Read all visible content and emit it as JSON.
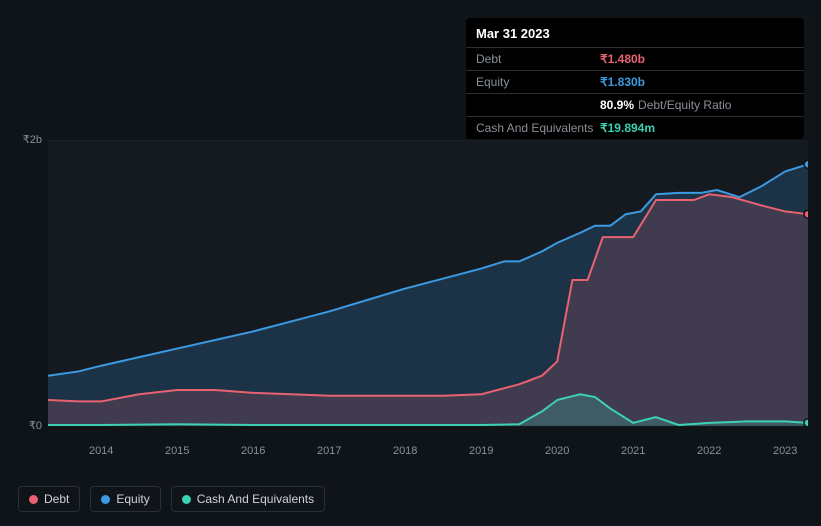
{
  "tooltip": {
    "date": "Mar 31 2023",
    "rows": [
      {
        "label": "Debt",
        "value": "₹1.480b",
        "color": "#e96272"
      },
      {
        "label": "Equity",
        "value": "₹1.830b",
        "color": "#3b9ae1"
      },
      {
        "label": "",
        "value": "80.9%",
        "extra": "Debt/Equity Ratio",
        "color": "#ffffff"
      },
      {
        "label": "Cash And Equivalents",
        "value": "₹19.894m",
        "color": "#3dd0b3"
      }
    ]
  },
  "chart": {
    "type": "area",
    "background_color": "#0f1419",
    "plot_background": "#151a21",
    "grid_color": "#1e242c",
    "ylim": [
      -0.1,
      2.0
    ],
    "yticks": [
      {
        "label": "₹2b",
        "value": 2.0
      },
      {
        "label": "₹0",
        "value": 0.0
      }
    ],
    "xlim": [
      2013.3,
      2023.3
    ],
    "xticks": [
      2014,
      2015,
      2016,
      2017,
      2018,
      2019,
      2020,
      2021,
      2022,
      2023
    ],
    "series": {
      "debt": {
        "color": "#e96272",
        "fill": "rgba(233,98,114,0.18)",
        "data": [
          [
            2013.3,
            0.18
          ],
          [
            2013.7,
            0.17
          ],
          [
            2014.0,
            0.17
          ],
          [
            2014.5,
            0.22
          ],
          [
            2015.0,
            0.25
          ],
          [
            2015.5,
            0.25
          ],
          [
            2016.0,
            0.23
          ],
          [
            2016.5,
            0.22
          ],
          [
            2017.0,
            0.21
          ],
          [
            2017.5,
            0.21
          ],
          [
            2018.0,
            0.21
          ],
          [
            2018.5,
            0.21
          ],
          [
            2019.0,
            0.22
          ],
          [
            2019.5,
            0.29
          ],
          [
            2019.8,
            0.35
          ],
          [
            2020.0,
            0.45
          ],
          [
            2020.2,
            1.02
          ],
          [
            2020.4,
            1.02
          ],
          [
            2020.6,
            1.32
          ],
          [
            2020.8,
            1.32
          ],
          [
            2021.0,
            1.32
          ],
          [
            2021.3,
            1.58
          ],
          [
            2021.8,
            1.58
          ],
          [
            2022.0,
            1.62
          ],
          [
            2022.3,
            1.6
          ],
          [
            2022.7,
            1.54
          ],
          [
            2023.0,
            1.5
          ],
          [
            2023.3,
            1.48
          ]
        ],
        "end_marker": true
      },
      "equity": {
        "color": "#3b9ae1",
        "fill": "rgba(59,154,225,0.20)",
        "data": [
          [
            2013.3,
            0.35
          ],
          [
            2013.7,
            0.38
          ],
          [
            2014.0,
            0.42
          ],
          [
            2014.5,
            0.48
          ],
          [
            2015.0,
            0.54
          ],
          [
            2015.5,
            0.6
          ],
          [
            2016.0,
            0.66
          ],
          [
            2016.5,
            0.73
          ],
          [
            2017.0,
            0.8
          ],
          [
            2017.5,
            0.88
          ],
          [
            2018.0,
            0.96
          ],
          [
            2018.5,
            1.03
          ],
          [
            2019.0,
            1.1
          ],
          [
            2019.3,
            1.15
          ],
          [
            2019.5,
            1.15
          ],
          [
            2019.8,
            1.22
          ],
          [
            2020.0,
            1.28
          ],
          [
            2020.3,
            1.35
          ],
          [
            2020.5,
            1.4
          ],
          [
            2020.7,
            1.4
          ],
          [
            2020.9,
            1.48
          ],
          [
            2021.1,
            1.5
          ],
          [
            2021.3,
            1.62
          ],
          [
            2021.6,
            1.63
          ],
          [
            2021.9,
            1.63
          ],
          [
            2022.1,
            1.65
          ],
          [
            2022.4,
            1.6
          ],
          [
            2022.7,
            1.68
          ],
          [
            2023.0,
            1.78
          ],
          [
            2023.3,
            1.83
          ]
        ],
        "end_marker": true
      },
      "cash": {
        "color": "#3dd0b3",
        "fill": "rgba(61,208,179,0.22)",
        "data": [
          [
            2013.3,
            0.005
          ],
          [
            2014.0,
            0.005
          ],
          [
            2015.0,
            0.01
          ],
          [
            2016.0,
            0.005
          ],
          [
            2017.0,
            0.005
          ],
          [
            2018.0,
            0.005
          ],
          [
            2019.0,
            0.005
          ],
          [
            2019.5,
            0.01
          ],
          [
            2019.8,
            0.1
          ],
          [
            2020.0,
            0.18
          ],
          [
            2020.3,
            0.22
          ],
          [
            2020.5,
            0.2
          ],
          [
            2020.7,
            0.12
          ],
          [
            2021.0,
            0.02
          ],
          [
            2021.3,
            0.06
          ],
          [
            2021.6,
            0.005
          ],
          [
            2022.0,
            0.02
          ],
          [
            2022.5,
            0.03
          ],
          [
            2023.0,
            0.03
          ],
          [
            2023.3,
            0.02
          ]
        ],
        "end_marker": true
      }
    }
  },
  "legend": [
    {
      "label": "Debt",
      "color": "#e96272"
    },
    {
      "label": "Equity",
      "color": "#3b9ae1"
    },
    {
      "label": "Cash And Equivalents",
      "color": "#3dd0b3"
    }
  ]
}
